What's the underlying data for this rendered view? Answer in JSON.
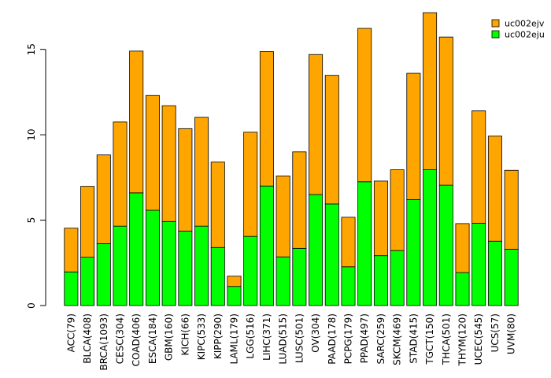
{
  "chart_data": {
    "type": "bar",
    "stacked": true,
    "title": "",
    "xlabel": "",
    "ylabel": "",
    "ylim": [
      0,
      17.2
    ],
    "yticks": [
      0,
      5,
      10,
      15
    ],
    "legend_position": "top-right",
    "categories": [
      "ACC(79)",
      "BLCA(408)",
      "BRCA(1093)",
      "CESC(304)",
      "COAD(406)",
      "ESCA(184)",
      "GBM(160)",
      "KICH(66)",
      "KIPC(533)",
      "KIPP(290)",
      "LAML(179)",
      "LGG(516)",
      "LIHC(371)",
      "LUAD(515)",
      "LUSC(501)",
      "OV(304)",
      "PAAD(178)",
      "PCPG(179)",
      "PPAD(497)",
      "SARC(259)",
      "SKCM(469)",
      "STAD(415)",
      "TGCT(150)",
      "THCA(501)",
      "THYM(120)",
      "UCEC(545)",
      "UCS(57)",
      "UVM(80)"
    ],
    "series": [
      {
        "name": "uc002eju",
        "color": "#00ff00",
        "values": [
          1.97,
          2.83,
          3.62,
          4.65,
          6.6,
          5.58,
          4.92,
          4.36,
          4.65,
          3.4,
          1.12,
          4.05,
          7.0,
          2.85,
          3.35,
          6.5,
          5.95,
          2.27,
          7.25,
          2.92,
          3.22,
          6.2,
          7.95,
          7.05,
          1.93,
          4.82,
          3.77,
          3.3
        ]
      },
      {
        "name": "uc002ejv",
        "color": "#ffa500",
        "values": [
          2.56,
          4.15,
          5.2,
          6.1,
          8.3,
          6.72,
          6.78,
          6.0,
          6.37,
          5.0,
          0.6,
          6.1,
          7.87,
          4.74,
          5.65,
          8.2,
          7.53,
          2.9,
          8.98,
          4.37,
          4.73,
          7.4,
          9.2,
          8.67,
          2.87,
          6.58,
          6.15,
          4.62
        ]
      }
    ]
  }
}
